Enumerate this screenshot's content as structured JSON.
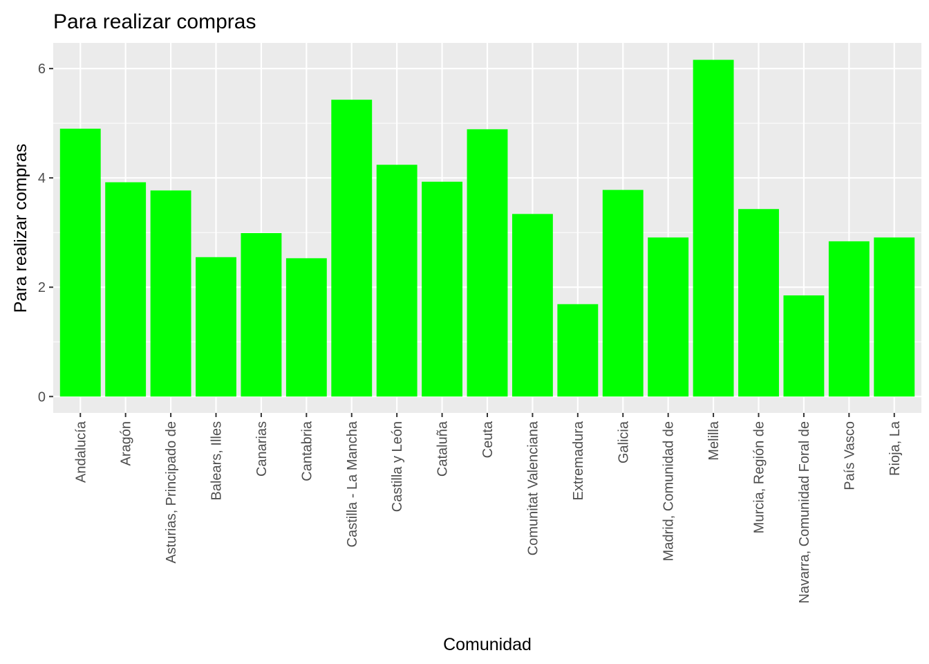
{
  "chart_data": {
    "type": "bar",
    "title": "Para realizar compras",
    "xlabel": "Comunidad",
    "ylabel": "Para realizar compras",
    "categories": [
      "Andalucía",
      "Aragón",
      "Asturias, Principado de",
      "Balears, Illes",
      "Canarias",
      "Cantabria",
      "Castilla - La Mancha",
      "Castilla y León",
      "Cataluña",
      "Ceuta",
      "Comunitat Valenciana",
      "Extremadura",
      "Galicia",
      "Madrid, Comunidad de",
      "Melilla",
      "Murcia, Región de",
      "Navarra, Comunidad Foral de",
      "País Vasco",
      "Rioja, La"
    ],
    "values": [
      4.9,
      3.92,
      3.77,
      2.55,
      2.99,
      2.53,
      5.43,
      4.24,
      3.93,
      4.89,
      3.34,
      1.69,
      3.78,
      2.91,
      6.16,
      3.43,
      1.85,
      2.84,
      2.91
    ],
    "ylim": [
      -0.3,
      6.47
    ],
    "yticks": [
      0,
      2,
      4,
      6
    ],
    "ytick_labels": [
      "0",
      "2",
      "4",
      "6"
    ],
    "grid": true,
    "legend": "none",
    "colors": {
      "bar": "#00ff00",
      "panel": "#ebebeb",
      "grid_major": "#ffffff",
      "tick_text": "#4d4d4d",
      "tick_mark": "#333333"
    }
  }
}
